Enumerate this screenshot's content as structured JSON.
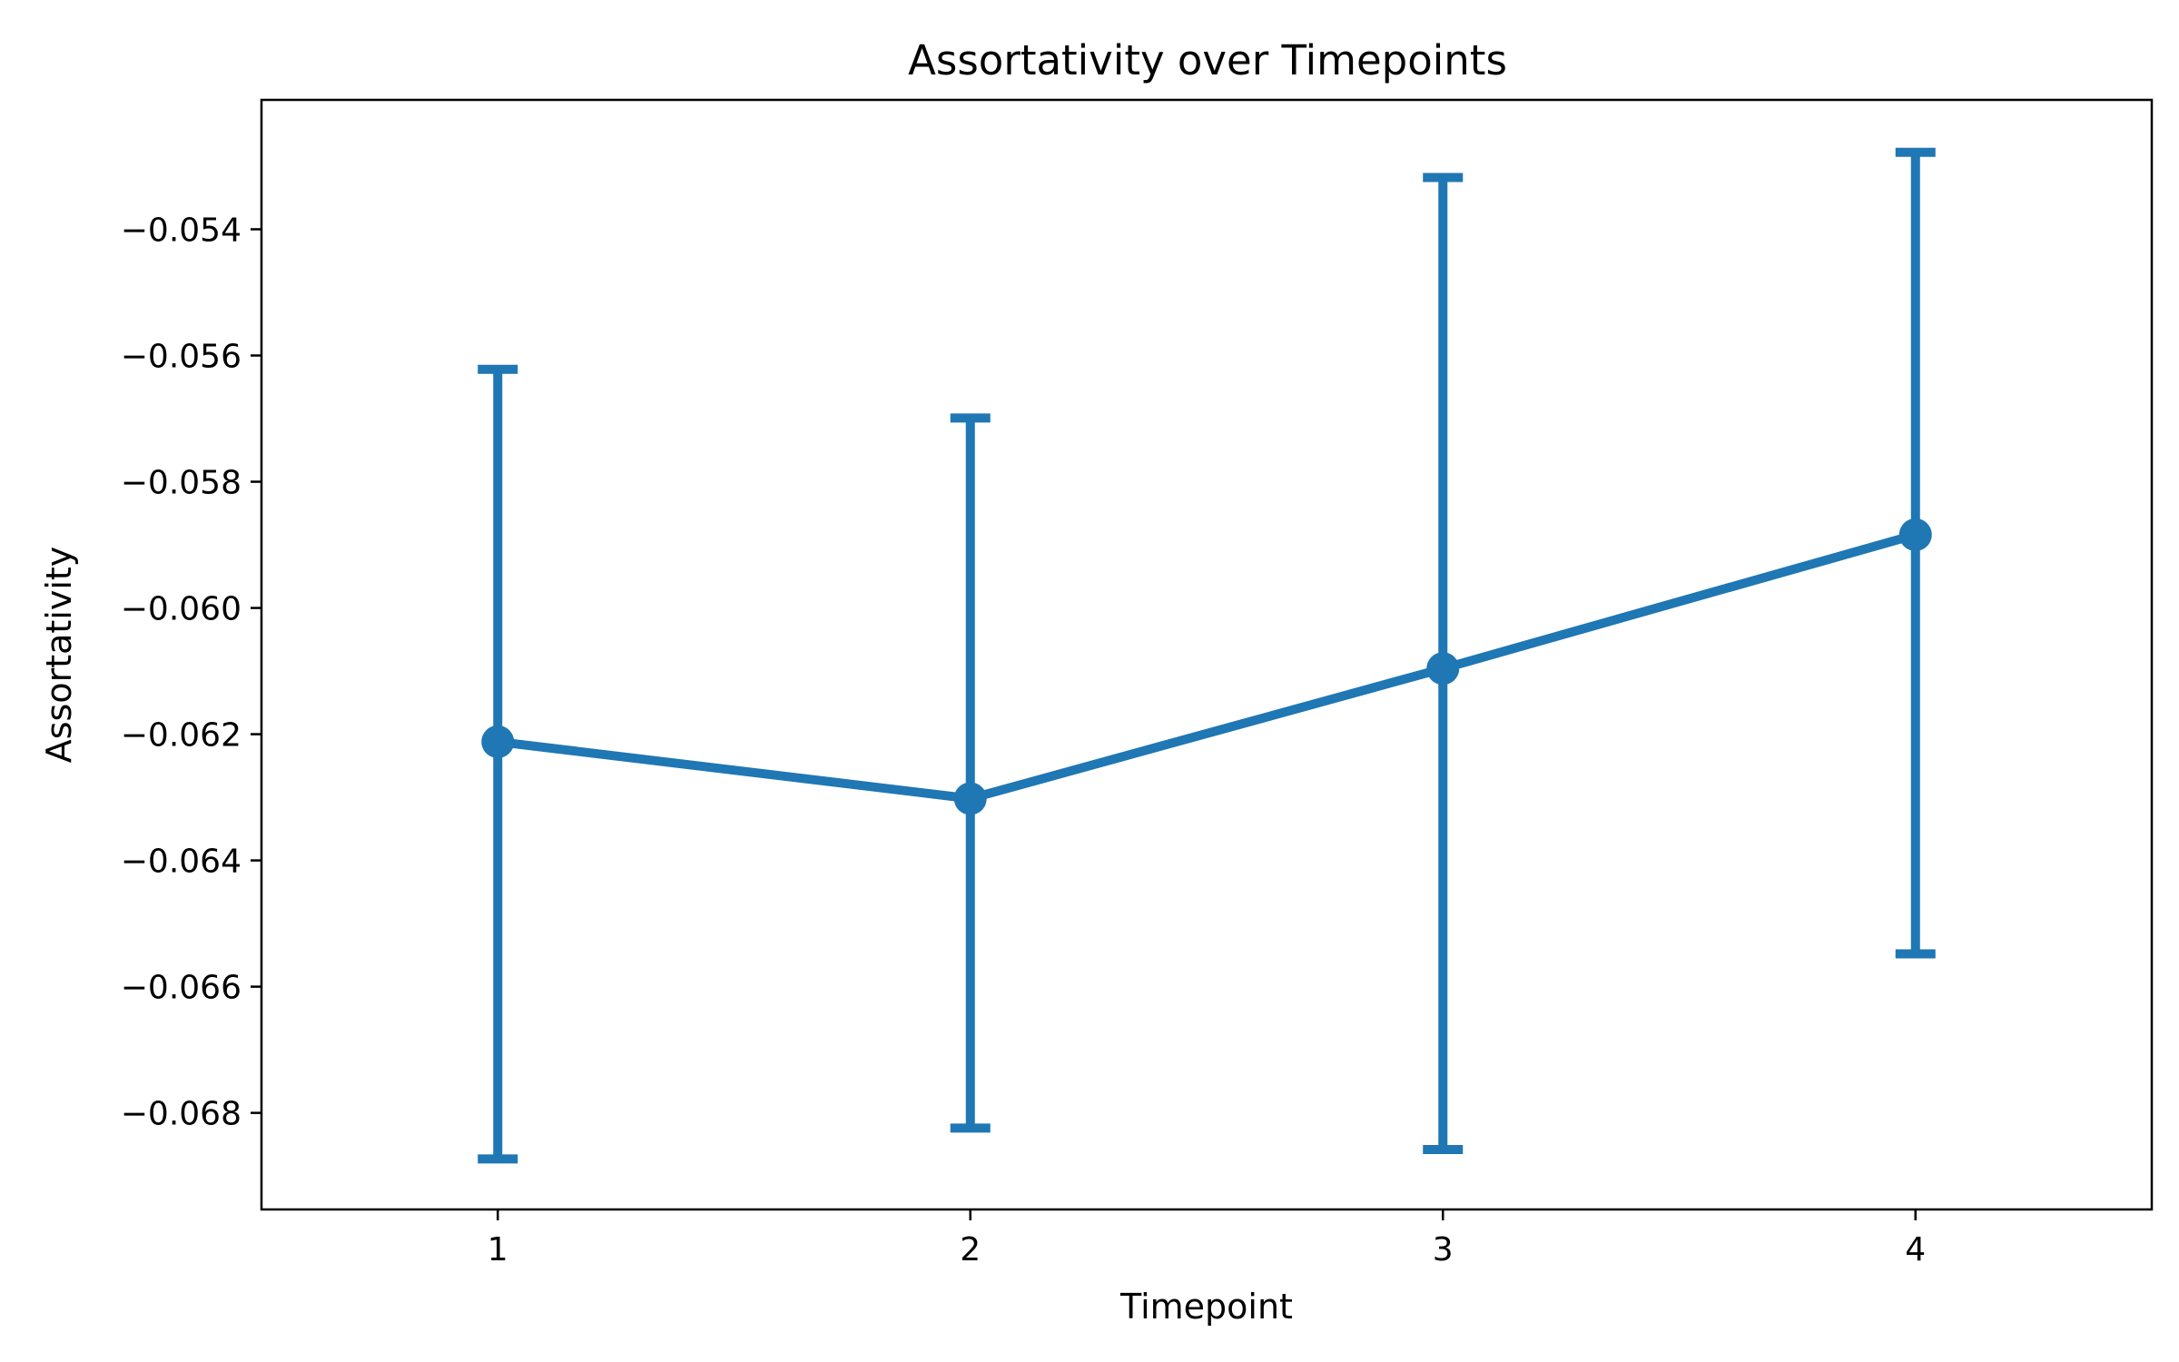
{
  "chart_data": {
    "type": "line",
    "title": "Assortativity over Timepoints",
    "xlabel": "Timepoint",
    "ylabel": "Assortativity",
    "x": [
      1,
      2,
      3,
      4
    ],
    "xlim": [
      0.5,
      4.5
    ],
    "xticks": [
      1,
      2,
      3,
      4
    ],
    "xtick_labels": [
      "1",
      "2",
      "3",
      "4"
    ],
    "ylim": [
      -0.06953,
      -0.05195
    ],
    "yticks": [
      -0.068,
      -0.066,
      -0.064,
      -0.062,
      -0.06,
      -0.058,
      -0.056,
      -0.054
    ],
    "ytick_labels": [
      "−0.068",
      "−0.066",
      "−0.064",
      "−0.062",
      "−0.060",
      "−0.058",
      "−0.056",
      "−0.054"
    ],
    "grid": false,
    "series": [
      {
        "values": [
          -0.06212,
          -0.06302,
          -0.06096,
          -0.05884
        ],
        "error_low": [
          -0.06873,
          -0.06824,
          -0.06858,
          -0.06548
        ],
        "error_high": [
          -0.05622,
          -0.05699,
          -0.05318,
          -0.05278
        ],
        "color": "#1f77b4"
      }
    ]
  }
}
